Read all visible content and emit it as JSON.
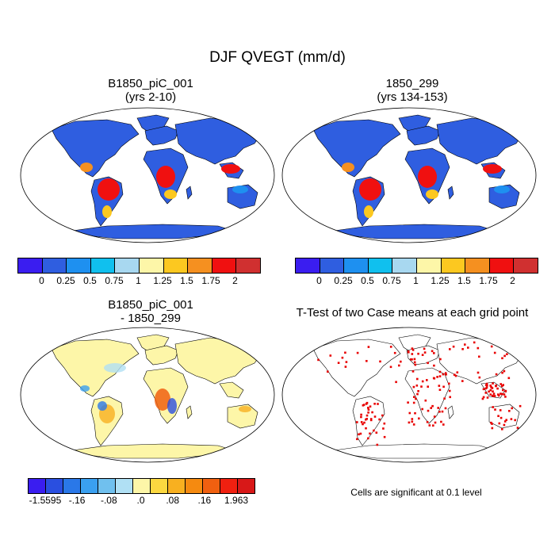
{
  "figure": {
    "title": "DJF QVEGT (mm/d)"
  },
  "panels": [
    {
      "id": "case1",
      "title_line1": "B1850_piC_001",
      "title_line2": "(yrs 2-10)"
    },
    {
      "id": "case2",
      "title_line1": "1850_299",
      "title_line2": "(yrs 134-153)"
    },
    {
      "id": "difference",
      "title_line1": "B1850_piC_001",
      "title_line2": "- 1850_299"
    },
    {
      "id": "ttest",
      "title_line1": "T-Test of two Case means at each grid point",
      "title_line2": ""
    }
  ],
  "colorbar_abs": {
    "colors": [
      "#3a1df0",
      "#2f5ee0",
      "#1e90f0",
      "#10c0ee",
      "#a8d8f0",
      "#fdf6a8",
      "#fcc820",
      "#f59020",
      "#f01010",
      "#d03030"
    ],
    "labels": [
      "0",
      "0.25",
      "0.5",
      "0.75",
      "1",
      "1.25",
      "1.5",
      "1.75",
      "2"
    ]
  },
  "colorbar_diff": {
    "colors": [
      "#3a1df0",
      "#2a4fe0",
      "#2a78e8",
      "#3aa0f0",
      "#70c0ee",
      "#b0e0f4",
      "#fdf6a8",
      "#fcd840",
      "#f8b020",
      "#f58a10",
      "#f06010",
      "#f02010",
      "#d81818"
    ],
    "labels": [
      "-1.5595",
      "-.16",
      "-.08",
      ".0",
      ".08",
      ".16",
      "1.963"
    ]
  },
  "ttest_note": "Cells are significant at 0.1 level",
  "colors": {
    "ocean": "#ffffff",
    "land_high": "#2f5ee0",
    "tropics_wet": "#f01010",
    "significant": "#e80000",
    "diff_neutral": "#fdf6a8"
  }
}
